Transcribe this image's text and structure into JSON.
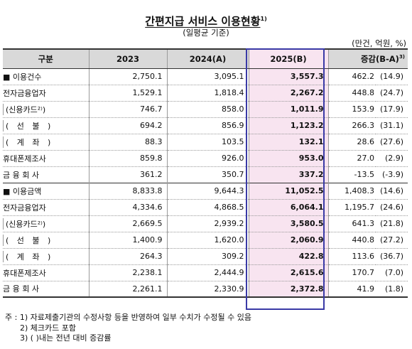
{
  "title": "간편지급 서비스 이용현황",
  "title_sup": "1)",
  "subtitle": "(일평균 기준)",
  "unit": "(만건, 억원, %)",
  "headers": {
    "category": "구분",
    "y2023": "2023",
    "y2024": "2024(A)",
    "y2025": "2025(B)",
    "change": "증감(B-A)",
    "change_sup": "3)"
  },
  "rows": [
    {
      "label": "■ 이용건수",
      "v2023": "2,750.1",
      "v2024": "3,095.1",
      "v2025": "3,557.3",
      "diff": "462.2",
      "pct": "(14.9)"
    },
    {
      "label": "전자금융업자",
      "v2023": "1,529.1",
      "v2024": "1,818.4",
      "v2025": "2,267.2",
      "diff": "448.8",
      "pct": "(24.7)"
    },
    {
      "label": "(신용카드²⁾)",
      "v2023": "746.7",
      "v2024": "858.0",
      "v2025": "1,011.9",
      "diff": "153.9",
      "pct": "(17.9)"
    },
    {
      "label": "( 선 불 )",
      "v2023": "694.2",
      "v2024": "856.9",
      "v2025": "1,123.2",
      "diff": "266.3",
      "pct": "(31.1)"
    },
    {
      "label": "( 계 좌 )",
      "v2023": "88.3",
      "v2024": "103.5",
      "v2025": "132.1",
      "diff": "28.6",
      "pct": "(27.6)"
    },
    {
      "label": "휴대폰제조사",
      "v2023": "859.8",
      "v2024": "926.0",
      "v2025": "953.0",
      "diff": "27.0",
      "pct": "(2.9)"
    },
    {
      "label": "금 융 회 사",
      "v2023": "361.2",
      "v2024": "350.7",
      "v2025": "337.2",
      "diff": "-13.5",
      "pct": "(-3.9)"
    },
    {
      "label": "■ 이용금액",
      "v2023": "8,833.8",
      "v2024": "9,644.3",
      "v2025": "11,052.5",
      "diff": "1,408.3",
      "pct": "(14.6)"
    },
    {
      "label": "전자금융업자",
      "v2023": "4,334.6",
      "v2024": "4,868.5",
      "v2025": "6,064.1",
      "diff": "1,195.7",
      "pct": "(24.6)"
    },
    {
      "label": "(신용카드²⁾)",
      "v2023": "2,669.5",
      "v2024": "2,939.2",
      "v2025": "3,580.5",
      "diff": "641.3",
      "pct": "(21.8)"
    },
    {
      "label": "( 선 불 )",
      "v2023": "1,400.9",
      "v2024": "1,620.0",
      "v2025": "2,060.9",
      "diff": "440.8",
      "pct": "(27.2)"
    },
    {
      "label": "( 계 좌 )",
      "v2023": "264.3",
      "v2024": "309.2",
      "v2025": "422.8",
      "diff": "113.6",
      "pct": "(36.7)"
    },
    {
      "label": "휴대폰제조사",
      "v2023": "2,238.1",
      "v2024": "2,444.9",
      "v2025": "2,615.6",
      "diff": "170.7",
      "pct": "(7.0)"
    },
    {
      "label": "금 융 회 사",
      "v2023": "2,261.1",
      "v2024": "2,330.9",
      "v2025": "2,372.8",
      "diff": "41.9",
      "pct": "(1.8)"
    }
  ],
  "notes": [
    "주 : 1) 자료제출기관의 수정사항 등을 반영하여 일부 수치가 수정될 수 있음",
    "2) 체크카드 포함",
    "3) ( )내는 전년 대비 증감률"
  ]
}
